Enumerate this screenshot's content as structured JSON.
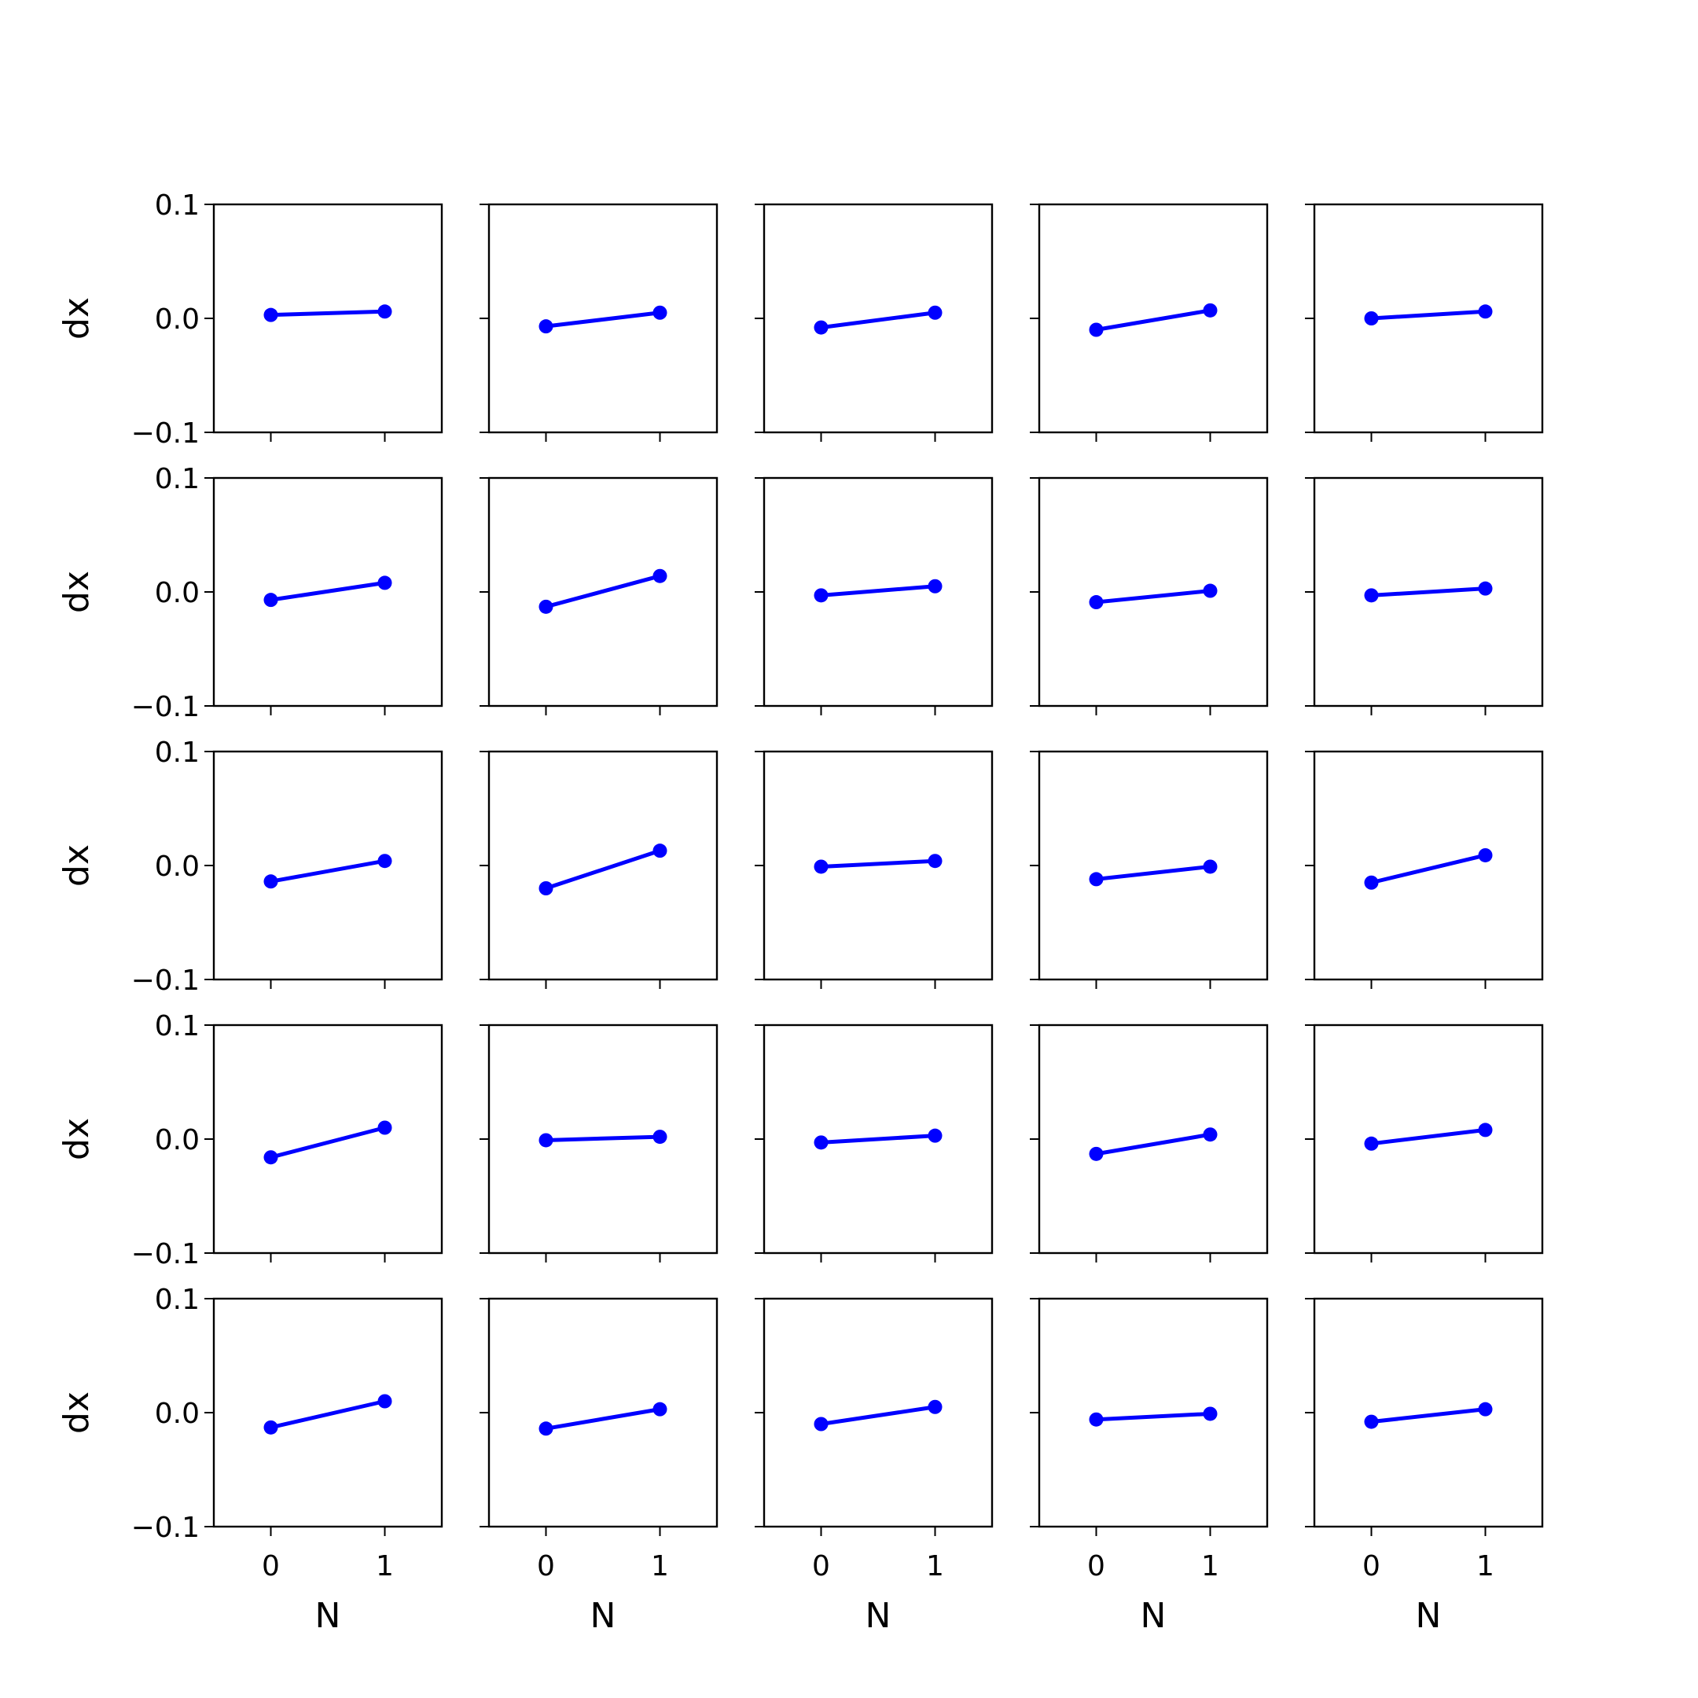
{
  "figure": {
    "background": "#ffffff",
    "series_color": "#0000ff",
    "axis_color": "#000000"
  },
  "chart_data": {
    "type": "line",
    "layout": {
      "rows": 5,
      "cols": 5,
      "shared_x": true,
      "shared_y": true
    },
    "x": [
      0,
      1
    ],
    "xlim": [
      -0.5,
      1.5
    ],
    "ylim": [
      -0.1,
      0.1
    ],
    "xticks": [
      "0",
      "1"
    ],
    "yticks": [
      "0.1",
      "0.0",
      "−0.1"
    ],
    "ytick_values": [
      0.1,
      0.0,
      -0.1
    ],
    "xlabel": "N",
    "ylabel": "dx",
    "marker": "circle",
    "grid": false,
    "panels": [
      {
        "row": 0,
        "col": 0,
        "y": [
          0.003,
          0.006
        ]
      },
      {
        "row": 0,
        "col": 1,
        "y": [
          -0.007,
          0.005
        ]
      },
      {
        "row": 0,
        "col": 2,
        "y": [
          -0.008,
          0.005
        ]
      },
      {
        "row": 0,
        "col": 3,
        "y": [
          -0.01,
          0.007
        ]
      },
      {
        "row": 0,
        "col": 4,
        "y": [
          0.0,
          0.006
        ]
      },
      {
        "row": 1,
        "col": 0,
        "y": [
          -0.007,
          0.008
        ]
      },
      {
        "row": 1,
        "col": 1,
        "y": [
          -0.013,
          0.014
        ]
      },
      {
        "row": 1,
        "col": 2,
        "y": [
          -0.003,
          0.005
        ]
      },
      {
        "row": 1,
        "col": 3,
        "y": [
          -0.009,
          0.001
        ]
      },
      {
        "row": 1,
        "col": 4,
        "y": [
          -0.003,
          0.003
        ]
      },
      {
        "row": 2,
        "col": 0,
        "y": [
          -0.014,
          0.004
        ]
      },
      {
        "row": 2,
        "col": 1,
        "y": [
          -0.02,
          0.013
        ]
      },
      {
        "row": 2,
        "col": 2,
        "y": [
          -0.001,
          0.004
        ]
      },
      {
        "row": 2,
        "col": 3,
        "y": [
          -0.012,
          -0.001
        ]
      },
      {
        "row": 2,
        "col": 4,
        "y": [
          -0.015,
          0.009
        ]
      },
      {
        "row": 3,
        "col": 0,
        "y": [
          -0.016,
          0.01
        ]
      },
      {
        "row": 3,
        "col": 1,
        "y": [
          -0.001,
          0.002
        ]
      },
      {
        "row": 3,
        "col": 2,
        "y": [
          -0.003,
          0.003
        ]
      },
      {
        "row": 3,
        "col": 3,
        "y": [
          -0.013,
          0.004
        ]
      },
      {
        "row": 3,
        "col": 4,
        "y": [
          -0.004,
          0.008
        ]
      },
      {
        "row": 4,
        "col": 0,
        "y": [
          -0.013,
          0.01
        ]
      },
      {
        "row": 4,
        "col": 1,
        "y": [
          -0.014,
          0.003
        ]
      },
      {
        "row": 4,
        "col": 2,
        "y": [
          -0.01,
          0.005
        ]
      },
      {
        "row": 4,
        "col": 3,
        "y": [
          -0.006,
          -0.001
        ]
      },
      {
        "row": 4,
        "col": 4,
        "y": [
          -0.008,
          0.003
        ]
      }
    ]
  }
}
